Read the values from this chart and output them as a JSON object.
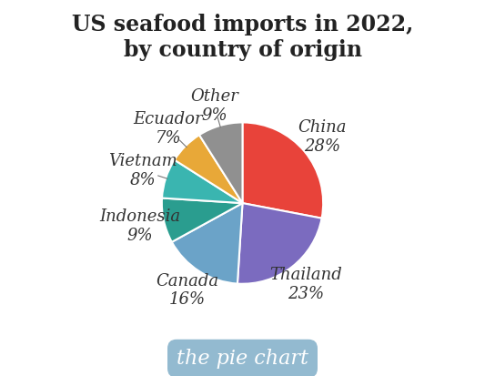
{
  "title": "US seafood imports in 2022,\nby country of origin",
  "labels": [
    "China",
    "Thailand",
    "Canada",
    "Indonesia",
    "Vietnam",
    "Ecuador",
    "Other"
  ],
  "values": [
    28,
    23,
    16,
    9,
    8,
    7,
    9
  ],
  "colors": [
    "#e8433a",
    "#7b6bbf",
    "#6ba3c8",
    "#2a9d8f",
    "#3ab5b0",
    "#e8a838",
    "#909090"
  ],
  "startangle": 90,
  "footer_text": "the pie chart",
  "footer_bg": "#8ab4cc",
  "footer_text_color": "#ffffff",
  "title_fontsize": 17,
  "label_fontsize": 13,
  "background_color": "#ffffff",
  "label_distances": [
    1.28,
    1.28,
    1.28,
    1.3,
    1.3,
    1.3,
    1.25
  ]
}
